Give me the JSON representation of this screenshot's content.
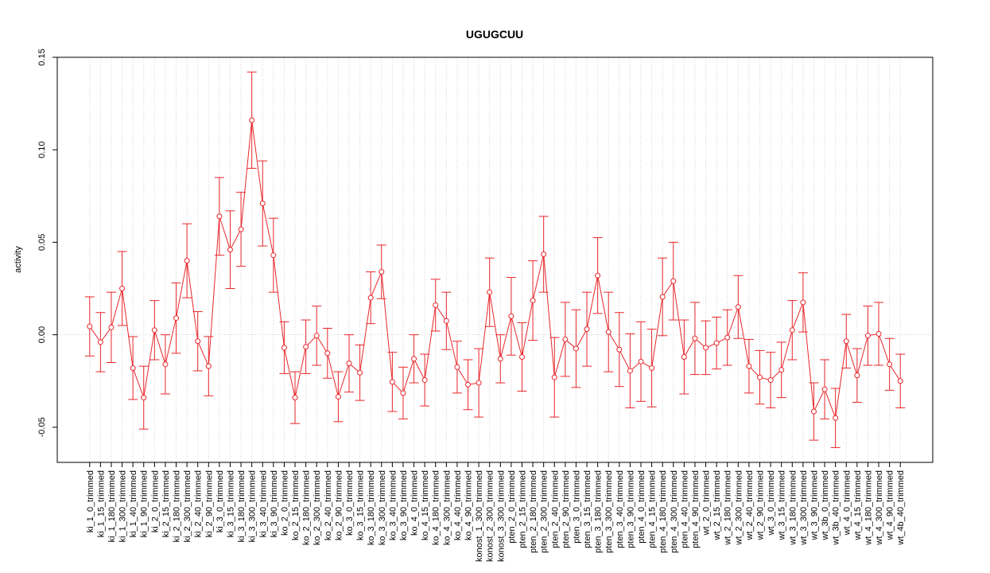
{
  "chart_data": {
    "type": "errorline",
    "title": "UGUGCUU",
    "y_label": "activity",
    "categories": [
      "ki_1_0_trimmed",
      "ki_1_15_trimmed",
      "ki_1_180_trimmed",
      "ki_1_300_trimmed",
      "ki_1_40_trimmed",
      "ki_1_90_trimmed",
      "ki_2_0_trimmed",
      "ki_2_15_trimmed",
      "ki_2_180_trimmed",
      "ki_2_300_trimmed",
      "ki_2_40_trimmed",
      "ki_2_90_trimmed",
      "ki_3_0_trimmed",
      "ki_3_15_trimmed",
      "ki_3_180_trimmed",
      "ki_3_300_trimmed",
      "ki_3_40_trimmed",
      "ki_3_90_trimmed",
      "ko_2_0_trimmed",
      "ko_2_15_trimmed",
      "ko_2_180_trimmed",
      "ko_2_300_trimmed",
      "ko_2_40_trimmed",
      "ko_2_90_trimmed",
      "ko_3_0_trimmed",
      "ko_3_15_trimmed",
      "ko_3_180_trimmed",
      "ko_3_300_trimmed",
      "ko_3_40_trimmed",
      "ko_3_90_trimmed",
      "ko_4_0_trimmed",
      "ko_4_15_trimmed",
      "ko_4_180_trimmed",
      "ko_4_300_trimmed",
      "ko_4_40_trimmed",
      "ko_4_90_trimmed",
      "konost_1_300_trimmed",
      "konost_2_300_trimmed",
      "konost_3_300_trimmed",
      "pten_2_0_trimmed",
      "pten_2_15_trimmed",
      "pten_2_180_trimmed",
      "pten_2_300_trimmed",
      "pten_2_40_trimmed",
      "pten_2_90_trimmed",
      "pten_3_0_trimmed",
      "pten_3_15_trimmed",
      "pten_3_180_trimmed",
      "pten_3_300_trimmed",
      "pten_3_40_trimmed",
      "pten_3_90_trimmed",
      "pten_4_0_trimmed",
      "pten_4_15_trimmed",
      "pten_4_180_trimmed",
      "pten_4_300_trimmed",
      "pten_4_40_trimmed",
      "pten_4_90_trimmed",
      "wt_2_0_trimmed",
      "wt_2_15_trimmed",
      "wt_2_180_trimmed",
      "wt_2_300_trimmed",
      "wt_2_40_trimmed",
      "wt_2_90_trimmed",
      "wt_3_0_trimmed",
      "wt_3_15_trimmed",
      "wt_3_180_trimmed",
      "wt_3_300_trimmed",
      "wt_3_90_trimmed",
      "wt_3b_0_trimmed",
      "wt_3b_40_trimmed",
      "wt_4_0_trimmed",
      "wt_4_15_trimmed",
      "wt_4_180_trimmed",
      "wt_4_300_trimmed",
      "wt_4_90_trimmed",
      "wt_4b_40_trimmed"
    ],
    "values": [
      0.0045,
      -0.004,
      0.004,
      0.025,
      -0.018,
      -0.034,
      0.0025,
      -0.016,
      0.009,
      0.04,
      -0.0035,
      -0.017,
      0.064,
      0.046,
      0.057,
      0.116,
      0.071,
      0.043,
      -0.007,
      -0.034,
      -0.0065,
      -0.0005,
      -0.01,
      -0.0335,
      -0.0155,
      -0.0205,
      0.02,
      0.034,
      -0.0255,
      -0.0315,
      -0.013,
      -0.0245,
      0.016,
      0.0075,
      -0.0175,
      -0.027,
      -0.026,
      0.023,
      -0.013,
      0.01,
      -0.012,
      0.0185,
      0.0435,
      -0.023,
      -0.0025,
      -0.0075,
      0.003,
      0.032,
      0.0015,
      -0.008,
      -0.0195,
      -0.0145,
      -0.018,
      0.0205,
      0.029,
      -0.012,
      -0.002,
      -0.007,
      -0.0045,
      -0.0015,
      0.015,
      -0.017,
      -0.023,
      -0.0245,
      -0.019,
      0.0025,
      0.0175,
      -0.0415,
      -0.0295,
      -0.045,
      -0.0035,
      -0.022,
      -0.0005,
      0.0005,
      -0.016,
      -0.025
    ],
    "errors": [
      0.016,
      0.016,
      0.019,
      0.02,
      0.017,
      0.017,
      0.016,
      0.016,
      0.019,
      0.02,
      0.016,
      0.016,
      0.021,
      0.021,
      0.02,
      0.026,
      0.023,
      0.02,
      0.014,
      0.014,
      0.0145,
      0.016,
      0.0135,
      0.0135,
      0.0155,
      0.015,
      0.014,
      0.0145,
      0.016,
      0.014,
      0.013,
      0.014,
      0.014,
      0.0155,
      0.014,
      0.0135,
      0.0185,
      0.0185,
      0.013,
      0.021,
      0.0185,
      0.0215,
      0.0205,
      0.0215,
      0.02,
      0.021,
      0.02,
      0.0205,
      0.0215,
      0.02,
      0.02,
      0.0215,
      0.021,
      0.021,
      0.021,
      0.02,
      0.0195,
      0.0145,
      0.014,
      0.015,
      0.017,
      0.0145,
      0.0145,
      0.015,
      0.015,
      0.016,
      0.016,
      0.0155,
      0.016,
      0.016,
      0.0145,
      0.0145,
      0.016,
      0.017,
      0.014,
      0.0145
    ],
    "color": "#e8262a",
    "ylim": [
      -0.069,
      0.15
    ],
    "yticks": [
      {
        "value": -0.05,
        "label": "-0.05"
      },
      {
        "value": 0,
        "label": "0.00"
      },
      {
        "value": 0.05,
        "label": "0.05"
      },
      {
        "value": 0.1,
        "label": "0.10"
      },
      {
        "value": 0.15,
        "label": "0.15"
      }
    ],
    "reference_line": 0,
    "grid": true
  }
}
